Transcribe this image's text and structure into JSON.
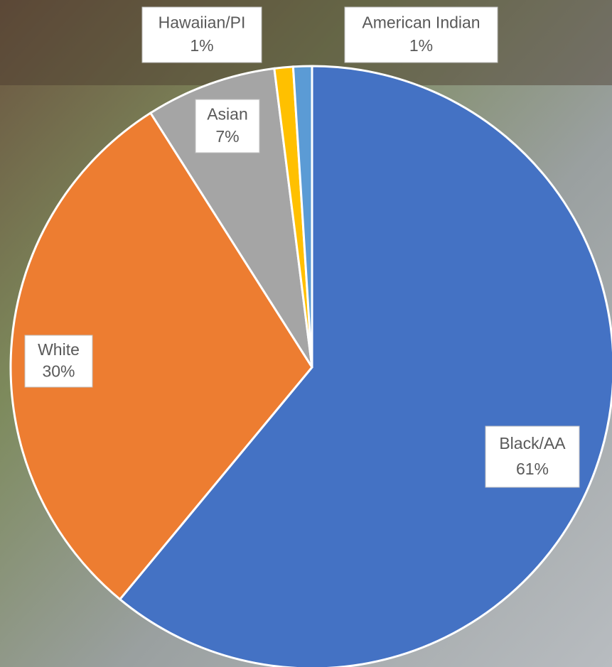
{
  "chart_data": {
    "type": "pie",
    "categories": [
      "Black/AA",
      "White",
      "Asian",
      "Hawaiian/PI",
      "American Indian"
    ],
    "values": [
      61,
      30,
      7,
      1,
      1
    ],
    "value_labels": [
      "61%",
      "30%",
      "7%",
      "1%",
      "1%"
    ],
    "colors": [
      "#4472c4",
      "#ed7d31",
      "#a5a5a5",
      "#ffc000",
      "#5b9bd5"
    ]
  }
}
